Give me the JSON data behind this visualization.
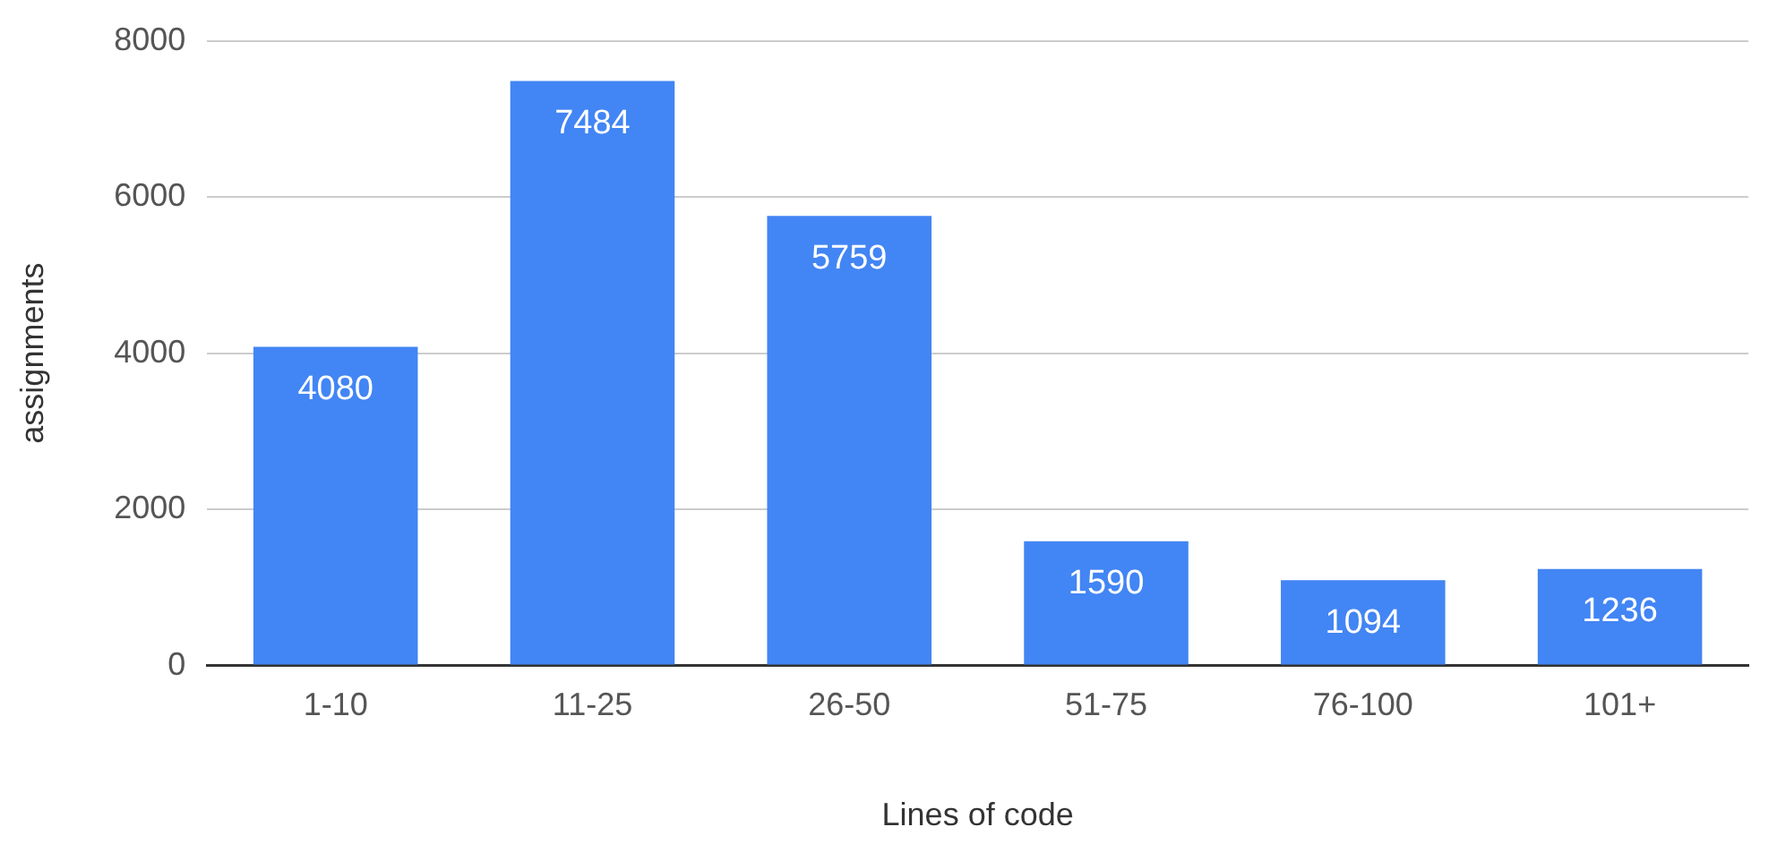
{
  "chart_data": {
    "type": "bar",
    "xlabel": "Lines of code",
    "ylabel": "assignments",
    "categories": [
      "1-10",
      "11-25",
      "26-50",
      "51-75",
      "76-100",
      "101+"
    ],
    "values": [
      4080,
      7484,
      5759,
      1590,
      1094,
      1236
    ],
    "color": "#4285f4",
    "ylim": [
      0,
      8000
    ],
    "yticks": [
      0,
      2000,
      4000,
      6000,
      8000
    ],
    "grid": "y",
    "legend": false,
    "data_labels": true
  }
}
